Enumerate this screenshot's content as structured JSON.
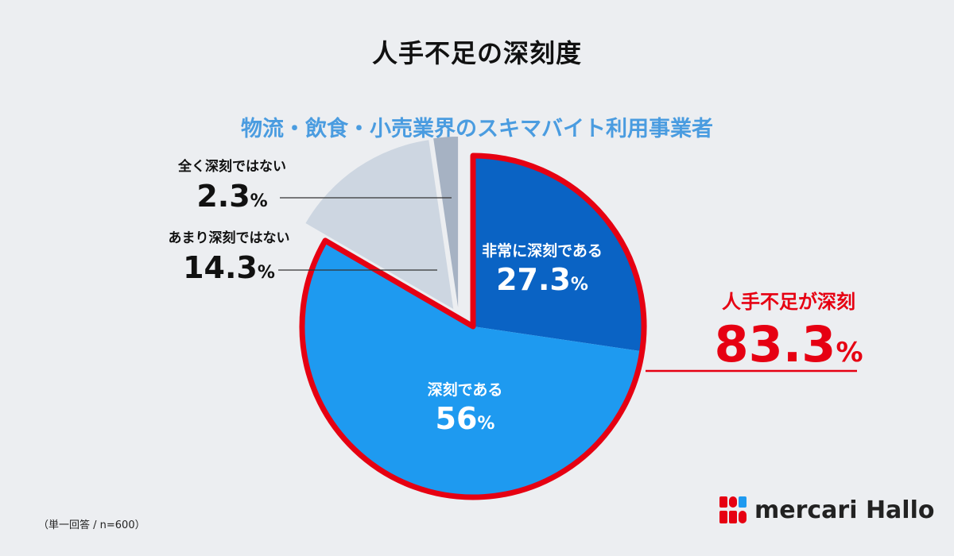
{
  "title": "人手不足の深刻度",
  "subtitle": "物流・飲食・小売業界のスキマバイト利用事業者",
  "footnote": "（単一回答 / n=600）",
  "brand": {
    "name": "mercari Hallo"
  },
  "callout": {
    "label": "人手不足が深刻",
    "value": "83.3",
    "unit": "%"
  },
  "colors": {
    "very_serious": "#0a63c4",
    "serious": "#1e9af0",
    "not_very": "#cdd6e1",
    "not_at_all": "#a6b2c3",
    "highlight": "#e60012",
    "accent_text": "#4a9ce0"
  },
  "chart_data": {
    "type": "pie",
    "slices": [
      {
        "label": "非常に深刻である",
        "value": 27.3,
        "display": "27.3",
        "unit": "%"
      },
      {
        "label": "深刻である",
        "value": 56,
        "display": "56",
        "unit": "%"
      },
      {
        "label": "あまり深刻ではない",
        "value": 14.3,
        "display": "14.3",
        "unit": "%"
      },
      {
        "label": "全く深刻ではない",
        "value": 2.3,
        "display": "2.3",
        "unit": "%"
      }
    ],
    "highlighted_slices": [
      "非常に深刻である",
      "深刻である"
    ],
    "start": "12 o'clock",
    "direction": "clockwise"
  }
}
